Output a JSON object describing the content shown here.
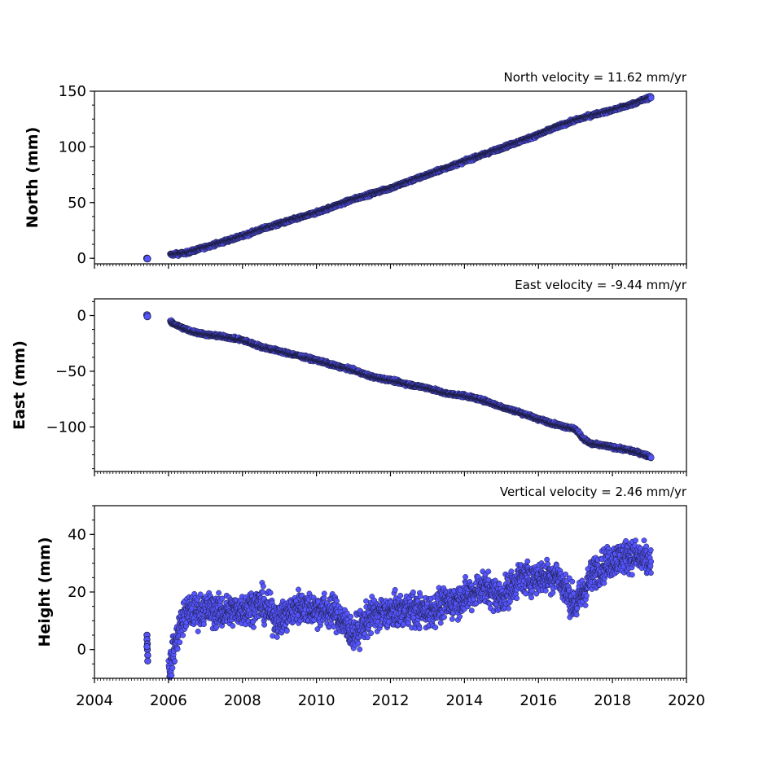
{
  "chart_data": [
    {
      "type": "scatter",
      "id": "north",
      "title": "North velocity = 11.62 mm/yr",
      "ylabel": "North (mm)",
      "xlim": [
        2004,
        2020
      ],
      "ylim": [
        -5,
        150
      ],
      "yticks": [
        0,
        50,
        100,
        150
      ],
      "yminor": 12.5,
      "marker_color": "#5555ff",
      "edge_color": "#1a1a3a",
      "series": [
        {
          "outlier": [
            [
              2005.42,
              0.0
            ],
            [
              2005.43,
              -0.4
            ]
          ],
          "start": 2006.05,
          "end": 2019.05,
          "noise": 1.0,
          "path": [
            [
              2006.0,
              3
            ],
            [
              2006.5,
              5
            ],
            [
              2007.0,
              10
            ],
            [
              2007.5,
              15
            ],
            [
              2008.0,
              20
            ],
            [
              2008.5,
              26
            ],
            [
              2009.0,
              31
            ],
            [
              2009.5,
              36
            ],
            [
              2010.0,
              41
            ],
            [
              2010.5,
              47
            ],
            [
              2011.0,
              53
            ],
            [
              2011.5,
              58
            ],
            [
              2012.0,
              63
            ],
            [
              2012.5,
              69
            ],
            [
              2013.0,
              75
            ],
            [
              2013.5,
              81
            ],
            [
              2014.0,
              87
            ],
            [
              2014.5,
              93
            ],
            [
              2015.0,
              99
            ],
            [
              2015.5,
              105
            ],
            [
              2016.0,
              111
            ],
            [
              2016.5,
              118
            ],
            [
              2017.0,
              124
            ],
            [
              2017.5,
              129
            ],
            [
              2018.0,
              133
            ],
            [
              2018.5,
              138
            ],
            [
              2019.05,
              145
            ]
          ]
        }
      ]
    },
    {
      "type": "scatter",
      "id": "east",
      "title": "East velocity = -9.44 mm/yr",
      "ylabel": "East (mm)",
      "xlim": [
        2004,
        2020
      ],
      "ylim": [
        -140,
        15
      ],
      "yticks": [
        0,
        -50,
        -100
      ],
      "yminor": 12.5,
      "marker_color": "#5555ff",
      "edge_color": "#1a1a3a",
      "series": [
        {
          "outlier": [
            [
              2005.42,
              0.5
            ],
            [
              2005.43,
              -0.8
            ]
          ],
          "start": 2006.05,
          "end": 2019.05,
          "noise": 1.0,
          "path": [
            [
              2006.0,
              -5
            ],
            [
              2006.3,
              -10
            ],
            [
              2006.6,
              -14
            ],
            [
              2007.0,
              -17
            ],
            [
              2007.5,
              -19
            ],
            [
              2008.0,
              -22
            ],
            [
              2008.5,
              -28
            ],
            [
              2009.0,
              -32
            ],
            [
              2009.5,
              -36
            ],
            [
              2010.0,
              -40
            ],
            [
              2010.5,
              -45
            ],
            [
              2011.0,
              -49
            ],
            [
              2011.5,
              -55
            ],
            [
              2012.0,
              -58
            ],
            [
              2012.5,
              -62
            ],
            [
              2013.0,
              -65
            ],
            [
              2013.5,
              -70
            ],
            [
              2014.0,
              -72
            ],
            [
              2014.5,
              -76
            ],
            [
              2015.0,
              -82
            ],
            [
              2015.5,
              -87
            ],
            [
              2016.0,
              -93
            ],
            [
              2016.5,
              -98
            ],
            [
              2017.0,
              -102
            ],
            [
              2017.2,
              -110
            ],
            [
              2017.4,
              -115
            ],
            [
              2017.8,
              -117
            ],
            [
              2018.3,
              -120
            ],
            [
              2018.7,
              -123
            ],
            [
              2019.05,
              -127
            ]
          ]
        }
      ]
    },
    {
      "type": "scatter",
      "id": "height",
      "title": "Vertical velocity = 2.46 mm/yr",
      "ylabel": "Height (mm)",
      "xlabel": "",
      "xlim": [
        2004,
        2020
      ],
      "xticks": [
        2004,
        2006,
        2008,
        2010,
        2012,
        2014,
        2016,
        2018,
        2020
      ],
      "ylim": [
        -10,
        50
      ],
      "yticks": [
        0,
        20,
        40
      ],
      "yminor": 5,
      "marker_color": "#5555ff",
      "edge_color": "#1a1a3a",
      "series": [
        {
          "outlier": [
            [
              2005.42,
              5.0
            ],
            [
              2005.42,
              3.5
            ],
            [
              2005.43,
              2.0
            ],
            [
              2005.43,
              0.0
            ],
            [
              2005.44,
              -2.0
            ],
            [
              2005.44,
              -4.0
            ],
            [
              2005.42,
              1.0
            ]
          ],
          "start": 2006.0,
          "end": 2019.05,
          "noise": 4.0,
          "path": [
            [
              2006.0,
              -8
            ],
            [
              2006.15,
              0
            ],
            [
              2006.3,
              8
            ],
            [
              2006.5,
              13
            ],
            [
              2007.0,
              14
            ],
            [
              2007.5,
              13
            ],
            [
              2008.0,
              14
            ],
            [
              2008.5,
              16
            ],
            [
              2009.0,
              10
            ],
            [
              2009.5,
              15
            ],
            [
              2010.0,
              14
            ],
            [
              2010.5,
              13
            ],
            [
              2011.0,
              5
            ],
            [
              2011.5,
              12
            ],
            [
              2012.0,
              13
            ],
            [
              2012.5,
              14
            ],
            [
              2013.0,
              13
            ],
            [
              2013.5,
              16
            ],
            [
              2014.0,
              18
            ],
            [
              2014.5,
              22
            ],
            [
              2015.0,
              18
            ],
            [
              2015.5,
              25
            ],
            [
              2016.0,
              25
            ],
            [
              2016.5,
              26
            ],
            [
              2017.0,
              15
            ],
            [
              2017.5,
              27
            ],
            [
              2018.0,
              31
            ],
            [
              2018.5,
              33
            ],
            [
              2019.05,
              30
            ]
          ]
        }
      ]
    }
  ]
}
